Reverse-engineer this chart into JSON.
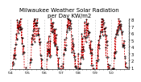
{
  "title": "Milwaukee Weather Solar Radiation\nper Day KW/m2",
  "title_fontsize": 5.0,
  "line_color": "#cc0000",
  "dot_color": "#000000",
  "background_color": "#ffffff",
  "grid_color": "#bbbbbb",
  "ylim": [
    0.8,
    8.2
  ],
  "yticks": [
    1,
    2,
    3,
    4,
    5,
    6,
    7,
    8
  ],
  "ylabel_fontsize": 3.8,
  "xlabel_fontsize": 3.2,
  "vgrid_x": [
    0,
    52,
    104,
    156,
    208,
    260,
    312,
    364
  ],
  "xtick_labels": [
    "'04",
    "'05",
    "'06",
    "'07",
    "'08",
    "'09",
    "'10"
  ],
  "xtick_positions": [
    0,
    52,
    104,
    156,
    208,
    260,
    312
  ]
}
